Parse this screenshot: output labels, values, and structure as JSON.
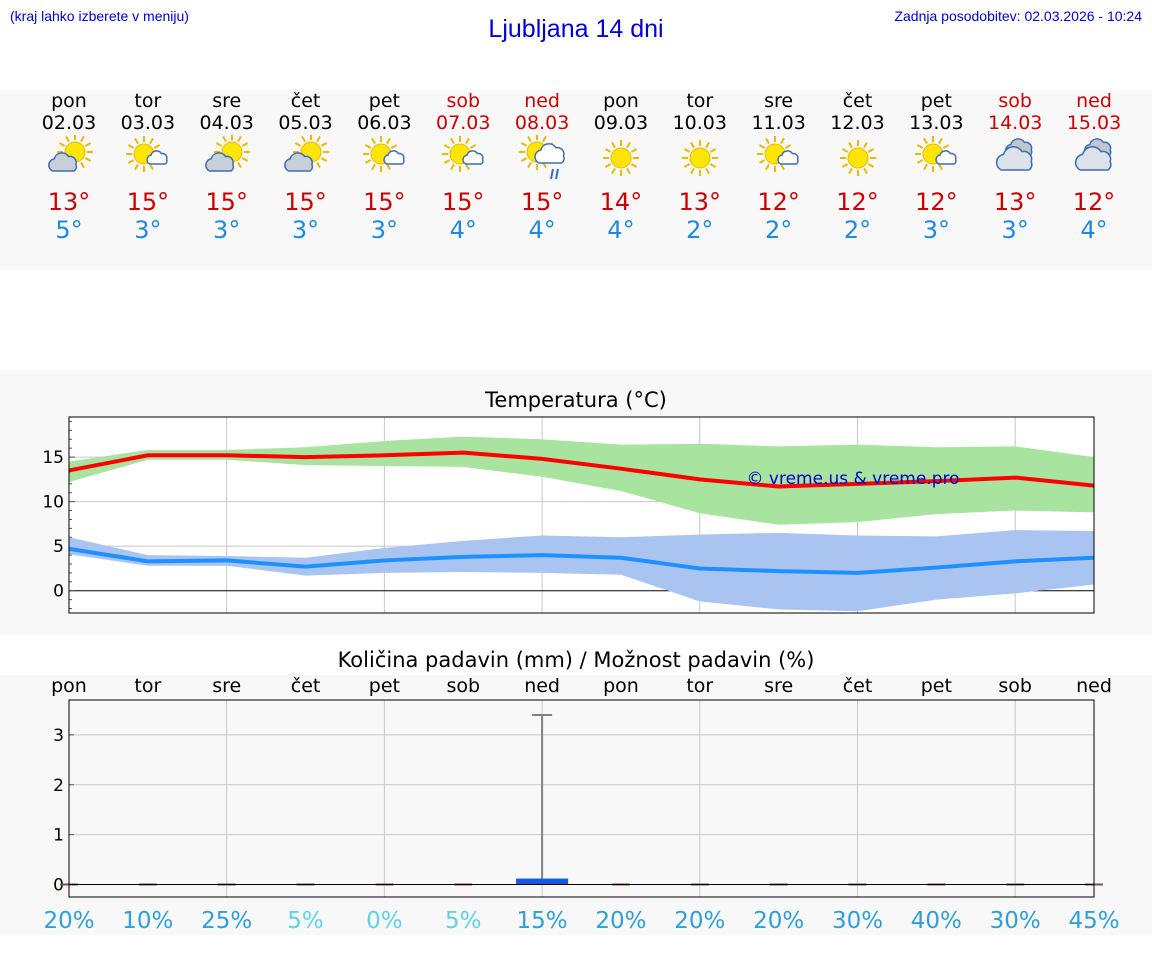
{
  "header": {
    "menu_hint": "(kraj lahko izberete v meniju)",
    "title": "Ljubljana 14 dni",
    "last_update": "Zadnja posodobitev: 02.03.2026 - 10:24"
  },
  "days": [
    {
      "name": "pon",
      "date": "02.03",
      "icon": "cloud-sun-icon",
      "max": "13°",
      "min": "5°",
      "weekend": false
    },
    {
      "name": "tor",
      "date": "03.03",
      "icon": "sun-cloud-icon",
      "max": "15°",
      "min": "3°",
      "weekend": false
    },
    {
      "name": "sre",
      "date": "04.03",
      "icon": "cloud-sun-icon",
      "max": "15°",
      "min": "3°",
      "weekend": false
    },
    {
      "name": "čet",
      "date": "05.03",
      "icon": "cloud-sun-icon",
      "max": "15°",
      "min": "3°",
      "weekend": false
    },
    {
      "name": "pet",
      "date": "06.03",
      "icon": "sun-cloud-icon",
      "max": "15°",
      "min": "3°",
      "weekend": false
    },
    {
      "name": "sob",
      "date": "07.03",
      "icon": "sun-cloud-icon",
      "max": "15°",
      "min": "4°",
      "weekend": true
    },
    {
      "name": "ned",
      "date": "08.03",
      "icon": "sun-cloud-rain-icon",
      "max": "15°",
      "min": "4°",
      "weekend": true
    },
    {
      "name": "pon",
      "date": "09.03",
      "icon": "sun-icon",
      "max": "14°",
      "min": "4°",
      "weekend": false
    },
    {
      "name": "tor",
      "date": "10.03",
      "icon": "sun-icon",
      "max": "13°",
      "min": "2°",
      "weekend": false
    },
    {
      "name": "sre",
      "date": "11.03",
      "icon": "sun-cloud-icon",
      "max": "12°",
      "min": "2°",
      "weekend": false
    },
    {
      "name": "čet",
      "date": "12.03",
      "icon": "sun-icon",
      "max": "12°",
      "min": "2°",
      "weekend": false
    },
    {
      "name": "pet",
      "date": "13.03",
      "icon": "sun-cloud-icon",
      "max": "12°",
      "min": "3°",
      "weekend": false
    },
    {
      "name": "sob",
      "date": "14.03",
      "icon": "cloudy-icon",
      "max": "13°",
      "min": "3°",
      "weekend": true
    },
    {
      "name": "ned",
      "date": "15.03",
      "icon": "cloudy-icon",
      "max": "12°",
      "min": "4°",
      "weekend": true
    }
  ],
  "chart_data": [
    {
      "type": "line",
      "title": "Temperatura (°C)",
      "watermark": "© vreme.us & vreme.pro",
      "ylim": [
        -2.5,
        19.5
      ],
      "yticks": [
        "0",
        "5",
        "10",
        "15"
      ],
      "grid": true,
      "colors": {
        "max": "#ff0000",
        "max_band": "#a8e4a0",
        "min": "#1e90ff",
        "min_band": "#a9c4f0"
      },
      "series": [
        {
          "role": "max",
          "values": [
            13.5,
            15.2,
            15.2,
            15.0,
            15.2,
            15.5,
            14.8,
            13.7,
            12.5,
            11.7,
            12.0,
            12.3,
            12.7,
            11.8
          ]
        },
        {
          "role": "max_band_upper",
          "values": [
            14.5,
            15.8,
            15.8,
            16.1,
            16.8,
            17.3,
            17.0,
            16.4,
            16.5,
            16.2,
            16.4,
            16.1,
            16.2,
            15.0
          ]
        },
        {
          "role": "max_band_lower",
          "values": [
            12.2,
            14.7,
            14.7,
            14.1,
            14.0,
            13.9,
            12.8,
            11.2,
            8.7,
            7.4,
            7.7,
            8.6,
            9.0,
            8.8
          ]
        },
        {
          "role": "min",
          "values": [
            4.7,
            3.3,
            3.4,
            2.7,
            3.4,
            3.8,
            4.0,
            3.7,
            2.5,
            2.2,
            2.0,
            2.6,
            3.3,
            3.7
          ]
        },
        {
          "role": "min_band_upper",
          "values": [
            6.0,
            4.0,
            3.9,
            3.7,
            4.8,
            5.6,
            6.2,
            6.0,
            6.3,
            6.5,
            6.2,
            6.1,
            6.8,
            6.7
          ]
        },
        {
          "role": "min_band_lower",
          "values": [
            4.1,
            2.8,
            2.8,
            1.7,
            2.0,
            2.1,
            2.0,
            1.8,
            -1.2,
            -2.1,
            -2.3,
            -1.0,
            -0.3,
            0.7
          ]
        }
      ]
    },
    {
      "type": "bar",
      "title": "Količina padavin (mm) / Možnost padavin (%)",
      "categories": [
        "pon",
        "tor",
        "sre",
        "čet",
        "pet",
        "sob",
        "ned",
        "pon",
        "tor",
        "sre",
        "čet",
        "pet",
        "sob",
        "ned"
      ],
      "ylim": [
        -0.25,
        3.7
      ],
      "yticks": [
        "0",
        "1",
        "2",
        "3"
      ],
      "grid": true,
      "colors": {
        "bar": "#1558e8",
        "error": "#808080"
      },
      "values": [
        0,
        0,
        0,
        0,
        0,
        0,
        0.12,
        0,
        0,
        0,
        0,
        0,
        0,
        0
      ],
      "error_high": [
        0,
        0,
        0,
        0,
        0,
        0,
        3.4,
        0,
        0,
        0,
        0,
        0,
        0,
        0
      ],
      "probability": [
        "20%",
        "10%",
        "25%",
        "5%",
        "0%",
        "5%",
        "15%",
        "20%",
        "20%",
        "20%",
        "30%",
        "40%",
        "30%",
        "45%"
      ],
      "probability_colors": [
        "#2f9fd8",
        "#2f9fd8",
        "#2f9fd8",
        "#5fd3e6",
        "#5fd3e6",
        "#5fd3e6",
        "#2f9fd8",
        "#2f9fd8",
        "#2f9fd8",
        "#2f9fd8",
        "#2f9fd8",
        "#2f9fd8",
        "#2f9fd8",
        "#2f9fd8"
      ]
    }
  ]
}
